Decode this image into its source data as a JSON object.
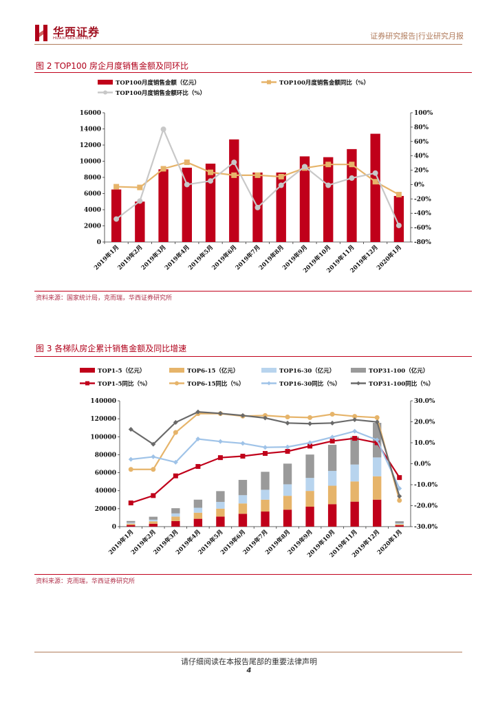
{
  "header": {
    "logo_cn": "华西证券",
    "logo_en": "HUAXI SECURITIES",
    "right_title": "证券研究报告|行业研究月报"
  },
  "figure2": {
    "title": "图 2   TOP100 房企月度销售金额及同环比",
    "source": "资料来源：国家统计局，克而瑞，华西证券研究所",
    "chart_data": {
      "type": "bar",
      "categories": [
        "2019年1月",
        "2019年2月",
        "2019年3月",
        "2019年4月",
        "2019年5月",
        "2019年6月",
        "2019年7月",
        "2019年8月",
        "2019年9月",
        "2019年10月",
        "2019年11月",
        "2019年12月",
        "2020年1月"
      ],
      "series": [
        {
          "name": "TOP100月度销售金额（亿元）",
          "type": "bar",
          "axis": "left",
          "color": "#c0001a",
          "values": [
            6500,
            5000,
            9000,
            9200,
            9700,
            12700,
            8600,
            8600,
            10600,
            10500,
            11500,
            13400,
            5700
          ]
        },
        {
          "name": "TOP100月度销售金额同比（%）",
          "type": "line",
          "axis": "right",
          "color": "#e6b46a",
          "values": [
            -3,
            -4,
            22,
            31,
            17,
            13,
            13,
            11,
            23,
            28,
            28,
            4,
            -14
          ]
        },
        {
          "name": "TOP100月度销售金额环比（%）",
          "type": "line",
          "axis": "right",
          "color": "#c8c8c8",
          "values": [
            -48,
            -23,
            77,
            0,
            5,
            31,
            -32,
            -1,
            25,
            -1,
            9,
            16,
            -57
          ]
        }
      ],
      "y_left": {
        "min": 0,
        "max": 16000,
        "ticks": [
          "0",
          "2000",
          "4000",
          "6000",
          "8000",
          "10000",
          "12000",
          "14000",
          "16000"
        ]
      },
      "y_right": {
        "min": -80,
        "max": 100,
        "ticks": [
          "-80%",
          "-60%",
          "-40%",
          "-20%",
          "0%",
          "20%",
          "40%",
          "60%",
          "80%",
          "100%"
        ]
      },
      "legend_position": "top"
    }
  },
  "figure3": {
    "title": "图 3   各梯队房企累计销售金额及同比增速",
    "source": "资料来源：克而瑞，华西证券研究所",
    "chart_data": {
      "type": "bar",
      "stacked": true,
      "categories": [
        "2019年1月",
        "2019年2月",
        "2019年3月",
        "2019年4月",
        "2019年5月",
        "2019年6月",
        "2019年7月",
        "2019年8月",
        "2019年9月",
        "2019年10月",
        "2019年11月",
        "2019年12月",
        "2020年1月"
      ],
      "series": [
        {
          "name": "TOP1-5（亿元）",
          "type": "bar",
          "axis": "left",
          "color": "#c0001a",
          "values": [
            1800,
            3200,
            6200,
            8700,
            11200,
            14300,
            16800,
            18800,
            22200,
            25000,
            27800,
            30000,
            1500
          ]
        },
        {
          "name": "TOP6-15（亿元）",
          "type": "bar",
          "axis": "left",
          "color": "#e6b46a",
          "values": [
            1500,
            2700,
            5000,
            6800,
            8800,
            11500,
            13200,
            15500,
            17500,
            20500,
            22500,
            26000,
            1200
          ]
        },
        {
          "name": "TOP16-30（亿元）",
          "type": "bar",
          "axis": "left",
          "color": "#b8d4ee",
          "values": [
            1100,
            1800,
            3500,
            5500,
            7500,
            9200,
            11000,
            12800,
            14500,
            16500,
            18800,
            21000,
            1100
          ]
        },
        {
          "name": "TOP31-100（亿元）",
          "type": "bar",
          "axis": "left",
          "color": "#9a9a9a",
          "values": [
            1900,
            3300,
            5800,
            9000,
            12000,
            17000,
            20000,
            23000,
            26000,
            29000,
            31000,
            38500,
            2200
          ]
        },
        {
          "name": "TOP1-5同比（%）",
          "type": "line",
          "axis": "right",
          "color": "#c0001a",
          "values": [
            -18.7,
            -15.2,
            -5.8,
            -1.3,
            2.9,
            3.6,
            4.9,
            5.9,
            8.4,
            10.8,
            12.1,
            10.0,
            -6.6
          ]
        },
        {
          "name": "TOP6-15同比（%）",
          "type": "line",
          "axis": "right",
          "color": "#e6b46a",
          "values": [
            -2.7,
            -2.7,
            14.9,
            23.9,
            23.9,
            22.7,
            23.0,
            22.3,
            22.0,
            23.6,
            22.6,
            22.0,
            -17.5
          ]
        },
        {
          "name": "TOP16-30同比（%）",
          "type": "line",
          "axis": "right",
          "color": "#9fc3e8",
          "values": [
            2.1,
            3.3,
            0.7,
            11.8,
            10.6,
            9.7,
            7.8,
            8.0,
            10.0,
            12.7,
            15.5,
            11.3,
            -11.8
          ]
        },
        {
          "name": "TOP31-100同比（%）",
          "type": "line",
          "axis": "right",
          "color": "#6a6a6a",
          "values": [
            16.4,
            9.3,
            19.7,
            24.7,
            24.0,
            23.0,
            21.8,
            19.4,
            19.1,
            19.4,
            21.0,
            19.9,
            -15.5
          ]
        }
      ],
      "y_left": {
        "min": 0,
        "max": 140000,
        "ticks": [
          "0",
          "20000",
          "40000",
          "60000",
          "80000",
          "100000",
          "120000",
          "140000"
        ]
      },
      "y_right": {
        "min": -30,
        "max": 30,
        "ticks": [
          "-30.0%",
          "-20.0%",
          "-10.0%",
          "0.0%",
          "10.0%",
          "20.0%",
          "30.0%"
        ]
      },
      "legend_position": "top"
    }
  },
  "footer": {
    "disclaimer": "请仔细阅读在本报告尾部的重要法律声明",
    "page_number": "4"
  }
}
